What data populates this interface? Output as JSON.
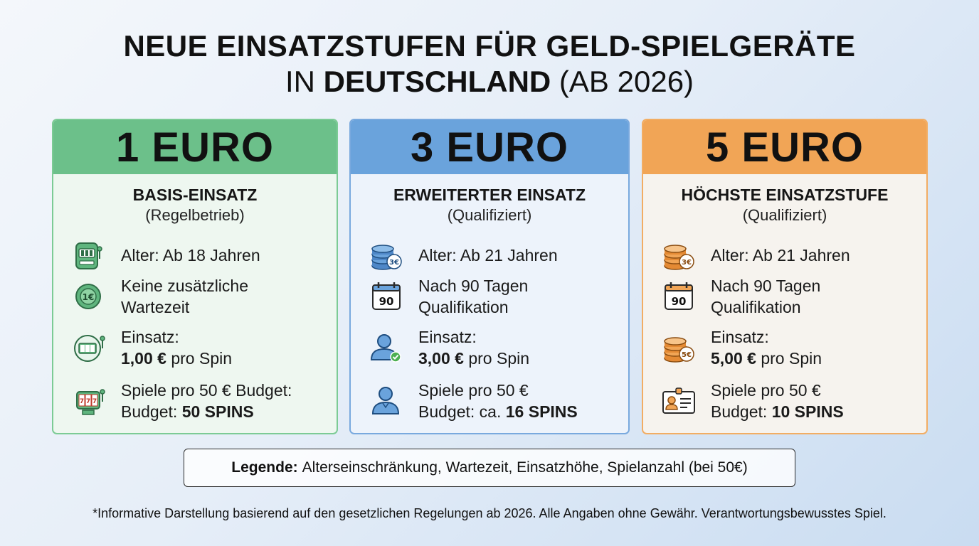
{
  "title": {
    "line1": "NEUE EINSATZSTUFEN FÜR GELD-SPIELGERÄTE",
    "line2_prefix": "IN ",
    "line2_bold": "DEUTSCHLAND",
    "line2_suffix": " (AB 2026)"
  },
  "colors": {
    "green": "#6cc08a",
    "blue": "#6aa3dc",
    "orange": "#f1a556"
  },
  "cards": [
    {
      "header": "1 EURO",
      "name": "BASIS-EINSATZ",
      "note": "(Regelbetrieb)",
      "rows": [
        {
          "icon": "slot-machine-icon",
          "line1": "Alter: Ab 18 Jahren"
        },
        {
          "icon": "euro-coin-icon",
          "line1": "Keine zusätzliche",
          "line2": "Wartezeit"
        },
        {
          "icon": "reels-icon",
          "line1": "Einsatz:",
          "bold": "1,00 €",
          "rest": " pro Spin"
        },
        {
          "icon": "slot-reels-icon",
          "line1": "Spiele pro 50 € Budget:",
          "prefix": "Budget: ",
          "bold": "50 SPINS"
        }
      ]
    },
    {
      "header": "3 EURO",
      "name": "ERWEITERTER EINSATZ",
      "note": "(Qualifiziert)",
      "rows": [
        {
          "icon": "coin-stack-icon",
          "badge": "3€",
          "line1": "Alter: Ab 21 Jahren"
        },
        {
          "icon": "calendar-icon",
          "badge": "90",
          "line1": "Nach 90 Tagen",
          "line2": "Qualifikation"
        },
        {
          "icon": "verified-user-icon",
          "line1": "Einsatz:",
          "bold": "3,00 €",
          "rest": " pro Spin"
        },
        {
          "icon": "user-icon",
          "line1": "Spiele pro 50 €",
          "prefix": "Budget: ca. ",
          "bold": "16 SPINS"
        }
      ]
    },
    {
      "header": "5 EURO",
      "name": "HÖCHSTE EINSATZSTUFE",
      "note": "(Qualifiziert)",
      "rows": [
        {
          "icon": "coin-stack-icon",
          "badge": "3€",
          "line1": "Alter: Ab 21 Jahren"
        },
        {
          "icon": "calendar-icon",
          "badge": "90",
          "line1": "Nach 90 Tagen",
          "line2": "Qualifikation"
        },
        {
          "icon": "coin-stack-icon",
          "badge": "5€",
          "line1": "Einsatz:",
          "bold": "5,00 €",
          "rest": " pro Spin"
        },
        {
          "icon": "id-card-icon",
          "line1": "Spiele pro 50 €",
          "prefix": "Budget: ",
          "bold": "10 SPINS"
        }
      ]
    }
  ],
  "legend": {
    "label": "Legende:",
    "text": "Alterseinschränkung, Wartezeit, Einsatzhöhe, Spielanzahl (bei 50€)"
  },
  "footnote": "*Informative Darstellung basierend auf den gesetzlichen Regelungen ab 2026. Alle Angaben ohne Gewähr. Verantwortungsbewusstes Spiel."
}
